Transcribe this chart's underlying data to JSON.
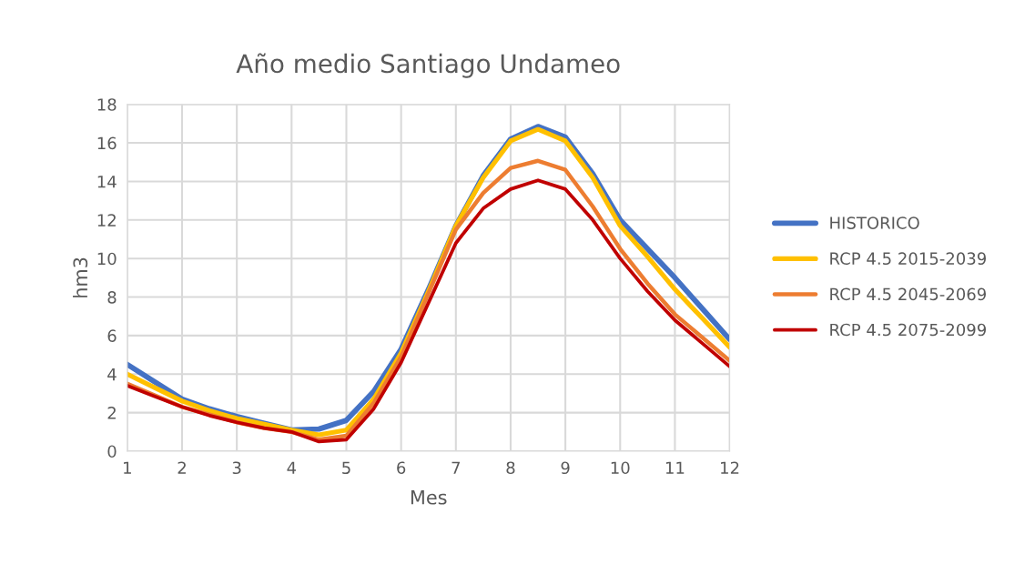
{
  "chart_data": {
    "type": "line",
    "title": "Año medio Santiago Undameo",
    "xlabel": "Mes",
    "ylabel": "hm3",
    "x": [
      1,
      1.5,
      2,
      2.5,
      3,
      3.5,
      4,
      4.5,
      5,
      5.5,
      6,
      6.5,
      7,
      7.5,
      8,
      8.5,
      9,
      9.5,
      10,
      10.5,
      11,
      11.5,
      12
    ],
    "series": [
      {
        "name": "HISTORICO",
        "color": "#4472c4",
        "values": [
          4.5,
          3.6,
          2.7,
          2.2,
          1.8,
          1.45,
          1.1,
          1.15,
          1.6,
          3.1,
          5.3,
          8.4,
          11.7,
          14.3,
          16.2,
          16.85,
          16.3,
          14.4,
          12.0,
          10.5,
          9.0,
          7.4,
          5.8
        ]
      },
      {
        "name": "RCP 4.5 2015-2039",
        "color": "#ffc000",
        "values": [
          4.0,
          3.3,
          2.6,
          2.1,
          1.7,
          1.4,
          1.1,
          0.85,
          1.1,
          2.7,
          5.1,
          8.3,
          11.7,
          14.2,
          16.1,
          16.7,
          16.1,
          14.2,
          11.7,
          10.1,
          8.4,
          6.9,
          5.4
        ]
      },
      {
        "name": "RCP 4.5 2045-2069",
        "color": "#ed7d31",
        "values": [
          3.5,
          2.9,
          2.3,
          1.9,
          1.5,
          1.2,
          1.0,
          0.6,
          0.8,
          2.5,
          4.9,
          8.2,
          11.5,
          13.4,
          14.7,
          15.07,
          14.6,
          12.7,
          10.5,
          8.7,
          7.1,
          5.9,
          4.7
        ]
      },
      {
        "name": "RCP 4.5 2075-2099",
        "color": "#c00000",
        "values": [
          3.4,
          2.85,
          2.3,
          1.85,
          1.5,
          1.2,
          1.0,
          0.5,
          0.6,
          2.2,
          4.6,
          7.7,
          10.8,
          12.6,
          13.6,
          14.06,
          13.6,
          12.0,
          10.0,
          8.3,
          6.8,
          5.6,
          4.4
        ]
      }
    ],
    "xlim": [
      1,
      12
    ],
    "xticks": [
      1,
      2,
      3,
      4,
      5,
      6,
      7,
      8,
      9,
      10,
      11,
      12
    ],
    "ylim": [
      0,
      18
    ],
    "yticks": [
      0,
      2,
      4,
      6,
      8,
      10,
      12,
      14,
      16,
      18
    ],
    "grid": true,
    "legend": "right",
    "marker": "none",
    "line_style": "solid"
  }
}
